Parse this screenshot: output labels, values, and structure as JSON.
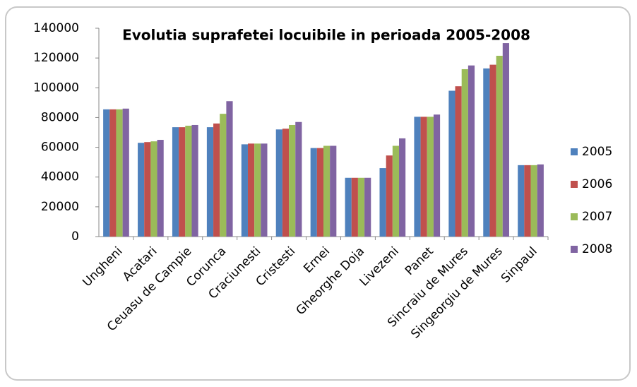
{
  "chart_data": {
    "type": "bar",
    "title": "Evolutia suprafetei locuibile in perioada 2005-2008",
    "categories": [
      "Ungheni",
      "Acatari",
      "Ceuasu de Campie",
      "Corunca",
      "Craciunesti",
      "Cristesti",
      "Ernei",
      "Gheorghe Doja",
      "Livezeni",
      "Panet",
      "Sincraiu de Mures",
      "Singeorgiu de Mures",
      "Sinpaul"
    ],
    "series": [
      {
        "name": "2005",
        "color": "#4f81bd",
        "values": [
          85500,
          63000,
          73500,
          73500,
          62000,
          72000,
          59500,
          39500,
          46000,
          80500,
          98000,
          113000,
          48000
        ]
      },
      {
        "name": "2006",
        "color": "#c0504d",
        "values": [
          85500,
          63500,
          73500,
          76000,
          62500,
          72500,
          59500,
          39500,
          54500,
          80500,
          101000,
          115500,
          48000
        ]
      },
      {
        "name": "2007",
        "color": "#9bbb59",
        "values": [
          85500,
          64000,
          74500,
          82500,
          62500,
          75000,
          61000,
          39500,
          61000,
          80500,
          112500,
          121500,
          48000
        ]
      },
      {
        "name": "2008",
        "color": "#8064a2",
        "values": [
          86000,
          65000,
          75000,
          91000,
          62500,
          77000,
          61000,
          39500,
          66000,
          82000,
          115000,
          130000,
          48500
        ]
      }
    ],
    "ylim": [
      0,
      140000
    ],
    "yticks": [
      0,
      20000,
      40000,
      60000,
      80000,
      100000,
      120000,
      140000
    ],
    "legend": "right"
  }
}
